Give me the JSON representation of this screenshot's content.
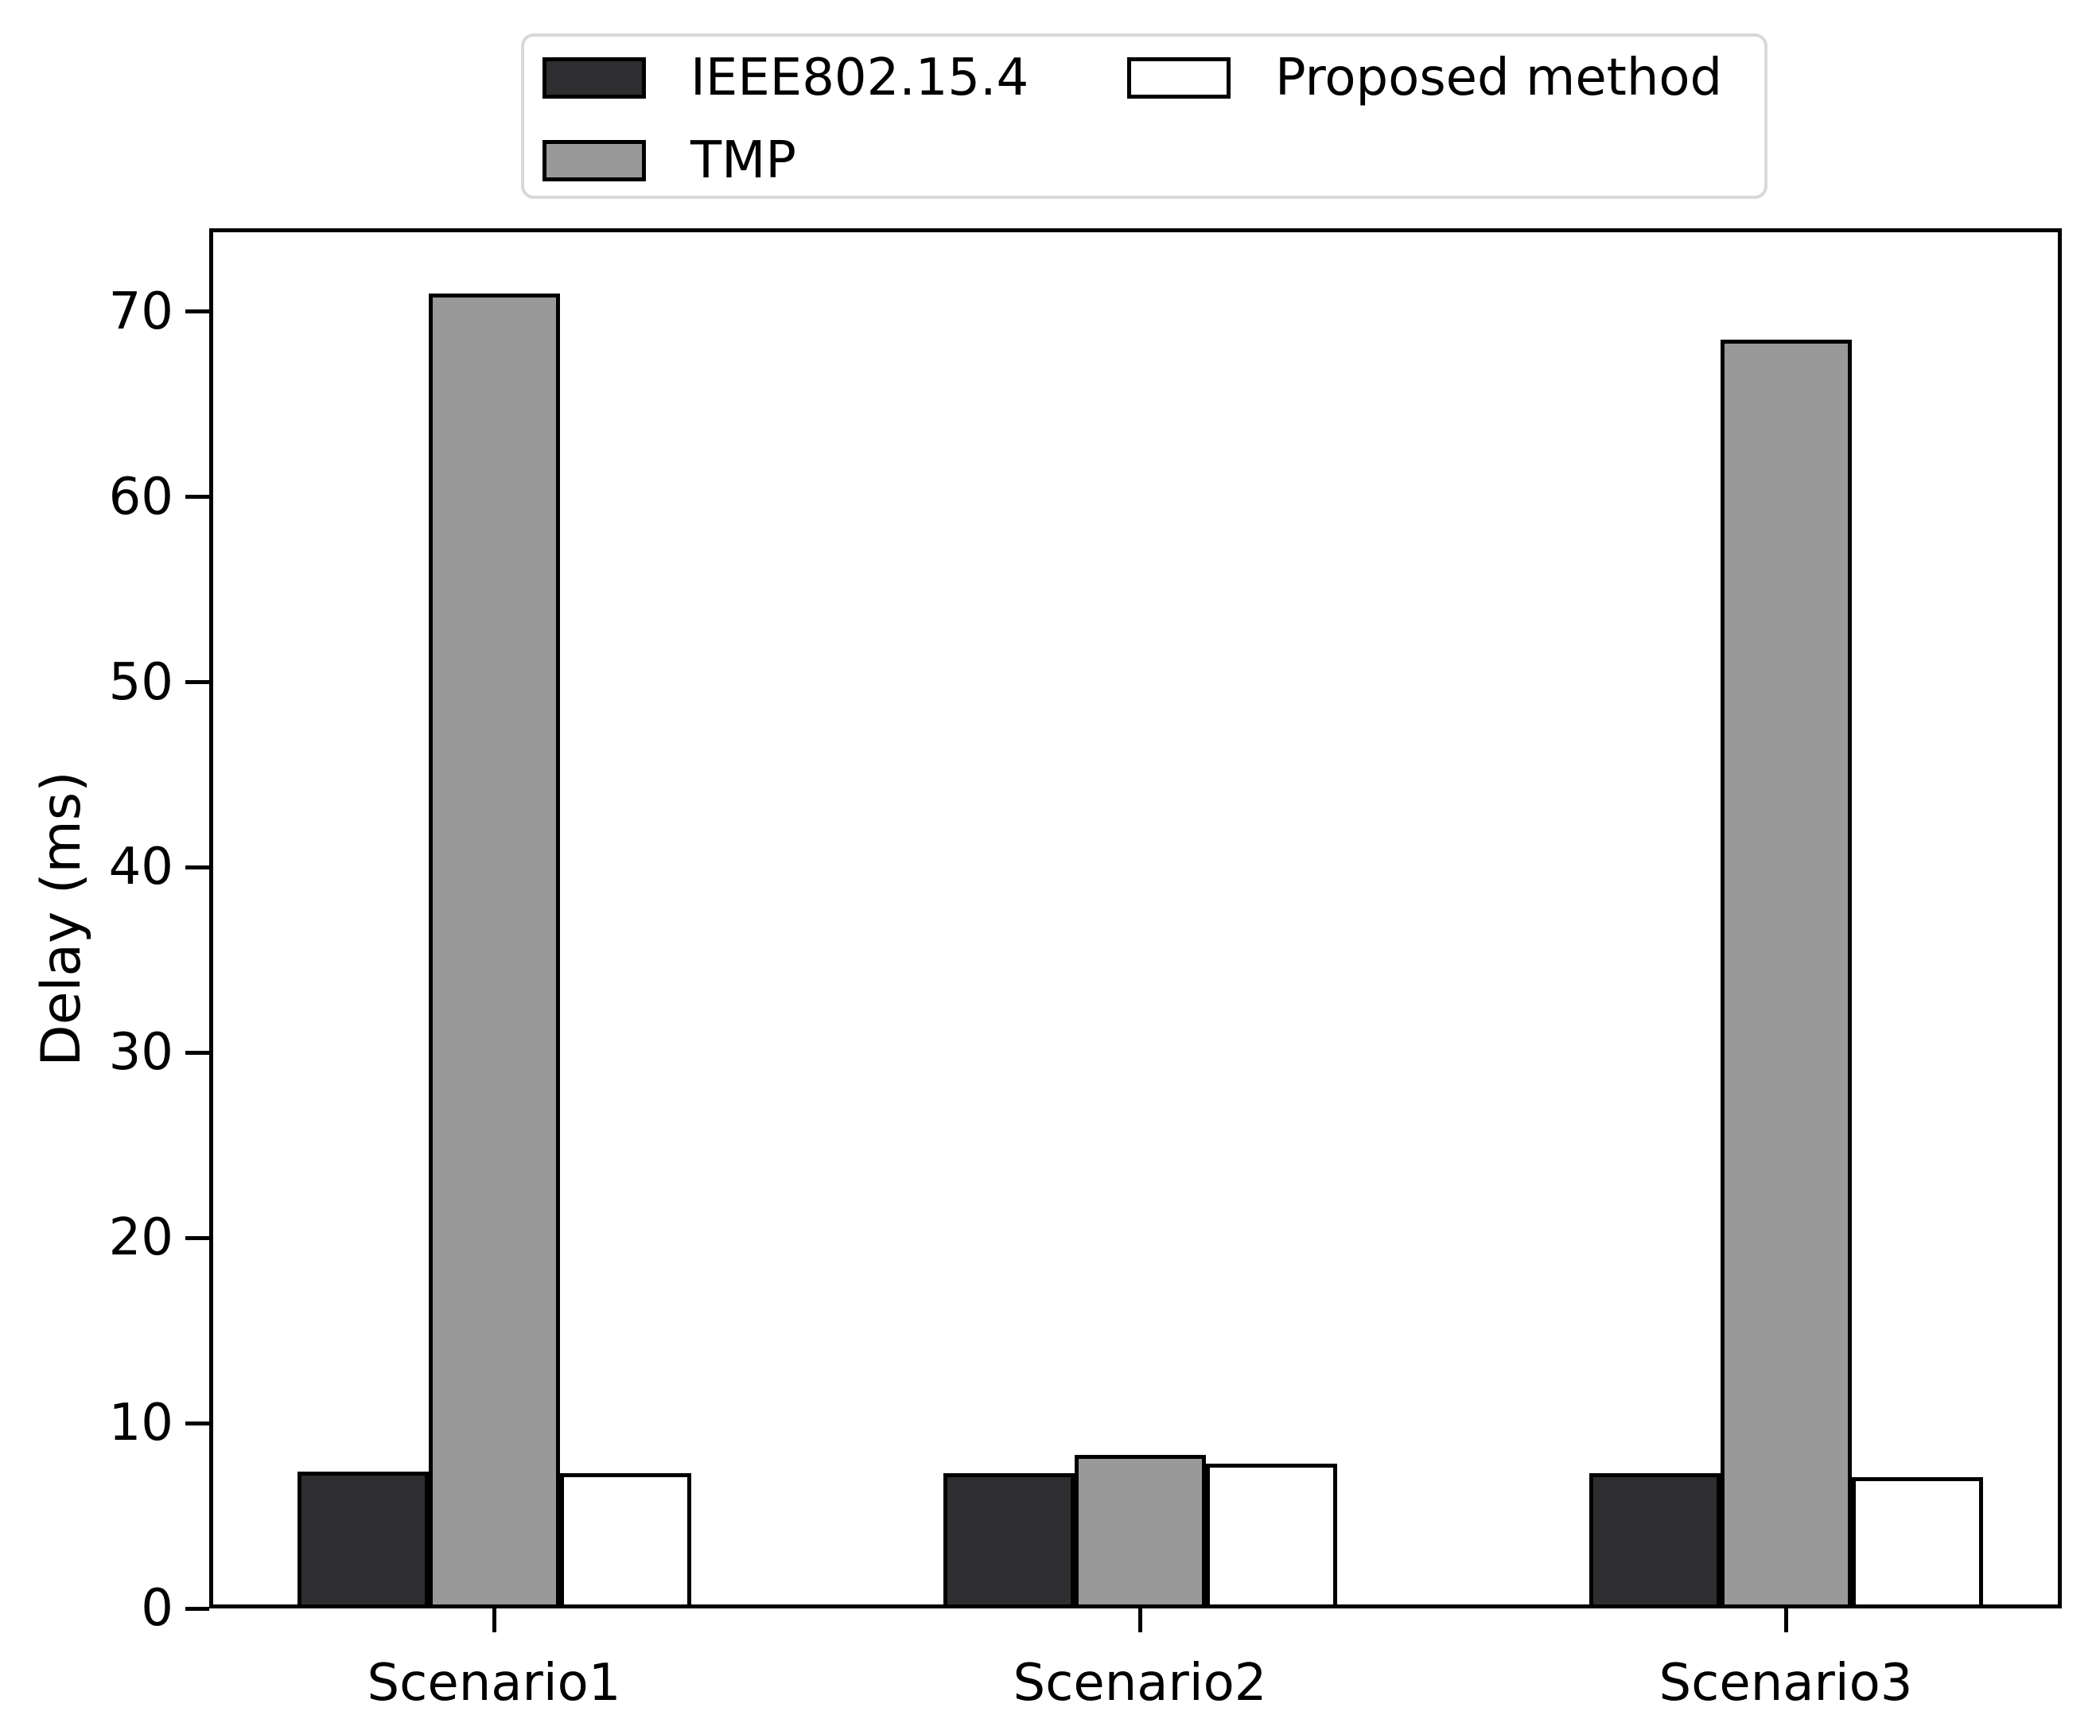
{
  "figure": {
    "background_color": "#ffffff"
  },
  "chart_data": {
    "type": "bar",
    "title": "",
    "categories": [
      "Scenario1",
      "Scenario2",
      "Scenario3"
    ],
    "series": [
      {
        "name": "IEEE802.15.4",
        "color": "#2e2e30",
        "values": [
          7.4,
          7.3,
          7.3
        ]
      },
      {
        "name": "TMP",
        "color": "#999999",
        "values": [
          71.0,
          8.3,
          68.5
        ]
      },
      {
        "name": "Proposed method",
        "color": "#ffffff",
        "values": [
          7.3,
          7.8,
          7.1
        ]
      }
    ],
    "xlabel": "",
    "ylabel": "Delay (ms)",
    "ylim": [
      0,
      74.5
    ],
    "yticks": [
      0,
      10,
      20,
      30,
      40,
      50,
      60,
      70
    ],
    "grid": false,
    "legend_position": "top",
    "legend_columns": 2,
    "bar_edge_color": "#000000",
    "spine_color": "#000000"
  }
}
